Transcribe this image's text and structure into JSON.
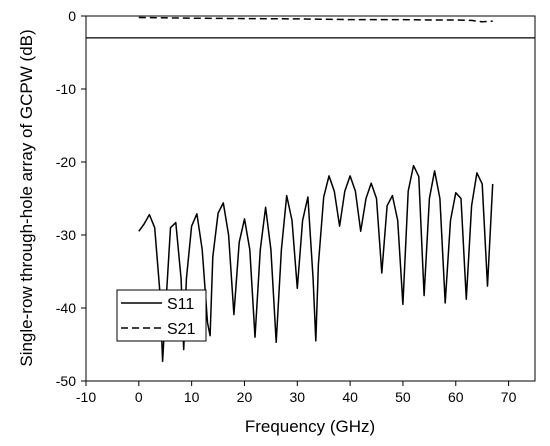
{
  "chart_data": {
    "type": "line",
    "xlabel": "Frequency (GHz)",
    "ylabel": "Single-row through-hole array of GCPW (dB)",
    "xlim": [
      -10,
      75
    ],
    "ylim": [
      -50,
      0
    ],
    "xticks": [
      -10,
      0,
      10,
      20,
      30,
      40,
      50,
      60,
      70
    ],
    "yticks": [
      0,
      -10,
      -20,
      -30,
      -40,
      -50
    ],
    "reference_line": {
      "y": -3,
      "style": "solid"
    },
    "legend": {
      "placement": "bottom-left",
      "entries": [
        "S11",
        "S21"
      ]
    },
    "grid": false,
    "series": [
      {
        "name": "S11",
        "style": "solid",
        "x": [
          0,
          1,
          2,
          3,
          4,
          4.5,
          5,
          6,
          7,
          8,
          8.5,
          9,
          10,
          11,
          12,
          13,
          13.5,
          14,
          15,
          16,
          17,
          18,
          19,
          20,
          21,
          22,
          23,
          24,
          25,
          26,
          27,
          28,
          29,
          30,
          31,
          32,
          33,
          33.5,
          34,
          35,
          36,
          37,
          38,
          39,
          40,
          41,
          42,
          43,
          44,
          45,
          46,
          47,
          48,
          49,
          50,
          51,
          52,
          53,
          54,
          55,
          56,
          57,
          58,
          59,
          60,
          61,
          62,
          63,
          64,
          65,
          66,
          67
        ],
        "y": [
          -29.5,
          -28.5,
          -27.2,
          -29,
          -38,
          -47.3,
          -41,
          -29,
          -28.3,
          -36,
          -45.7,
          -36,
          -28.8,
          -27.1,
          -32,
          -42,
          -43.8,
          -33,
          -27,
          -25.6,
          -30,
          -40.9,
          -31,
          -27.8,
          -32,
          -44,
          -32,
          -26.2,
          -32,
          -44.7,
          -32,
          -24.6,
          -28,
          -37.3,
          -28,
          -24.8,
          -36,
          -44.5,
          -34,
          -24.8,
          -21.9,
          -24,
          -28.8,
          -24,
          -21.9,
          -24,
          -29.5,
          -25,
          -22.9,
          -25,
          -35.2,
          -26,
          -24.6,
          -28,
          -39.5,
          -24,
          -20.5,
          -22,
          -38.3,
          -25,
          -21.2,
          -25,
          -39.3,
          -28,
          -24.2,
          -25,
          -38.8,
          -26,
          -21.5,
          -23,
          -37,
          -23
        ]
      },
      {
        "name": "S21",
        "style": "dashed",
        "x": [
          0,
          10,
          20,
          30,
          40,
          50,
          55,
          60,
          63,
          65,
          67
        ],
        "y": [
          -0.2,
          -0.3,
          -0.35,
          -0.4,
          -0.5,
          -0.5,
          -0.55,
          -0.55,
          -0.6,
          -0.8,
          -0.7
        ]
      }
    ]
  }
}
